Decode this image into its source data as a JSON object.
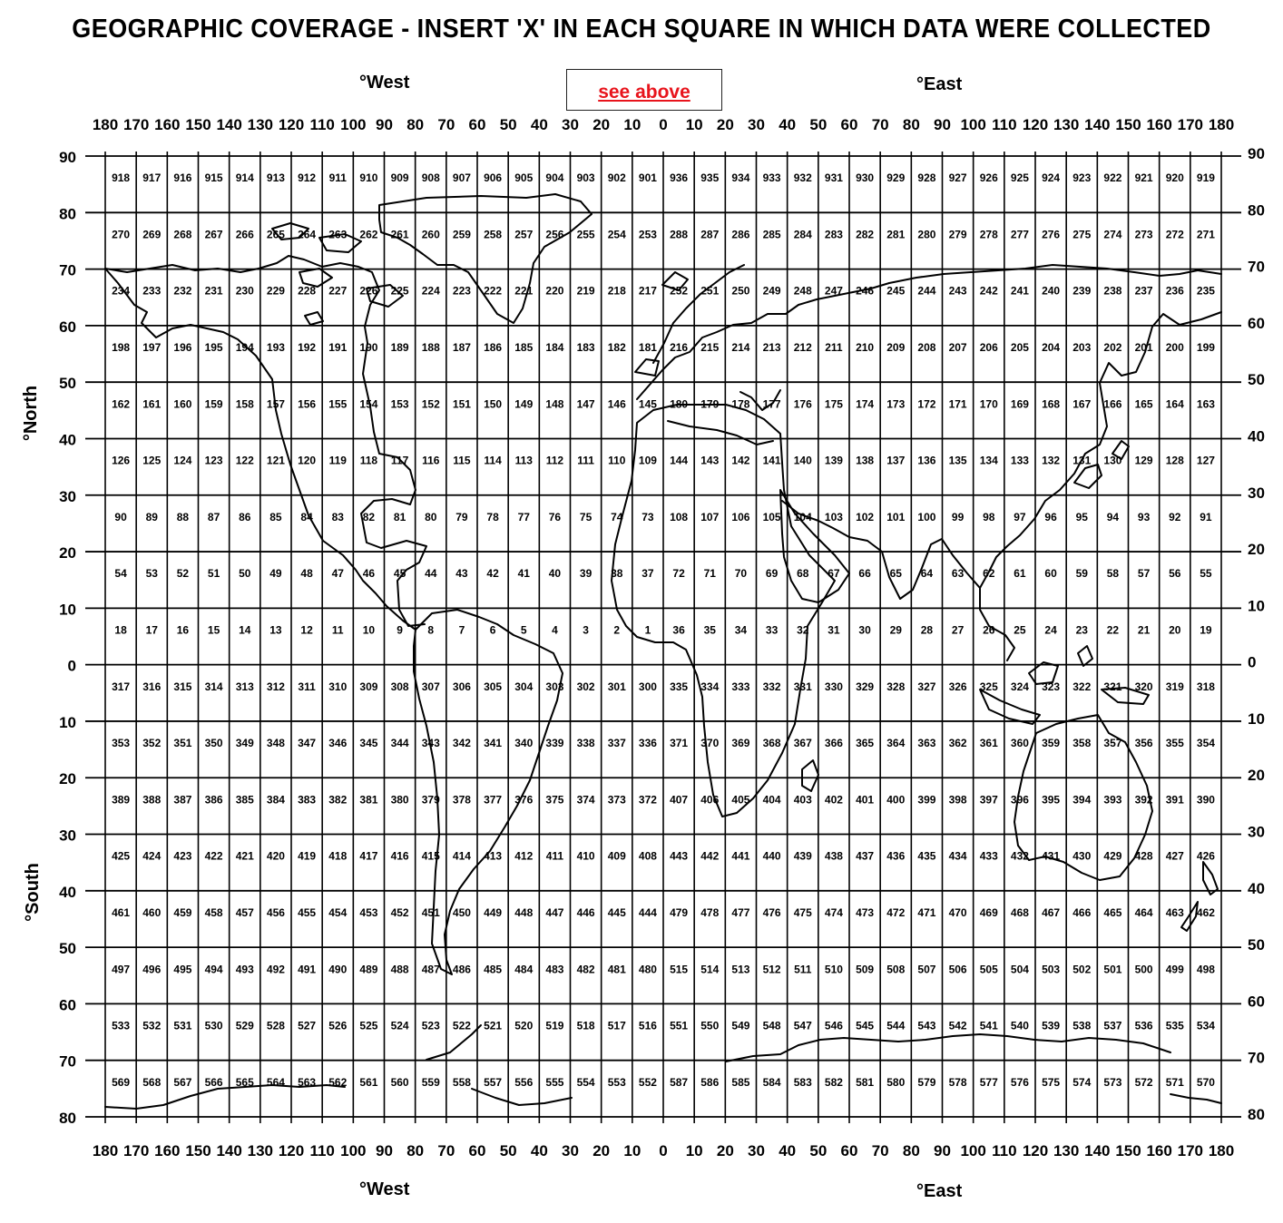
{
  "title": "GEOGRAPHIC COVERAGE - INSERT 'X' IN EACH SQUARE IN WHICH DATA WERE COLLECTED",
  "headers": {
    "west_top": "°West",
    "east_top": "°East",
    "west_bottom": "°West",
    "east_bottom": "°East",
    "north": "°North",
    "south": "°South"
  },
  "link": {
    "label": "see above",
    "color": "#e8141c"
  },
  "axes": {
    "longitude_labels": [
      "180",
      "170",
      "160",
      "150",
      "140",
      "130",
      "120",
      "110",
      "100",
      "90",
      "80",
      "70",
      "60",
      "50",
      "40",
      "30",
      "20",
      "10",
      "0",
      "10",
      "20",
      "30",
      "40",
      "50",
      "60",
      "70",
      "80",
      "90",
      "100",
      "110",
      "120",
      "130",
      "140",
      "150",
      "160",
      "170",
      "180"
    ],
    "latitude_labels": [
      "90",
      "80",
      "70",
      "60",
      "50",
      "40",
      "30",
      "20",
      "10",
      "0",
      "10",
      "20",
      "30",
      "40",
      "50",
      "60",
      "70",
      "80"
    ]
  },
  "grid_rows": [
    [
      918,
      917,
      916,
      915,
      914,
      913,
      912,
      911,
      910,
      909,
      908,
      907,
      906,
      905,
      904,
      903,
      902,
      901,
      936,
      935,
      934,
      933,
      932,
      931,
      930,
      929,
      928,
      927,
      926,
      925,
      924,
      923,
      922,
      921,
      920,
      919
    ],
    [
      270,
      269,
      268,
      267,
      266,
      265,
      264,
      263,
      262,
      261,
      260,
      259,
      258,
      257,
      256,
      255,
      254,
      253,
      288,
      287,
      286,
      285,
      284,
      283,
      282,
      281,
      280,
      279,
      278,
      277,
      276,
      275,
      274,
      273,
      272,
      271
    ],
    [
      234,
      233,
      232,
      231,
      230,
      229,
      228,
      227,
      226,
      225,
      224,
      223,
      222,
      221,
      220,
      219,
      218,
      217,
      252,
      251,
      250,
      249,
      248,
      247,
      246,
      245,
      244,
      243,
      242,
      241,
      240,
      239,
      238,
      237,
      236,
      235
    ],
    [
      198,
      197,
      196,
      195,
      194,
      193,
      192,
      191,
      190,
      189,
      188,
      187,
      186,
      185,
      184,
      183,
      182,
      181,
      216,
      215,
      214,
      213,
      212,
      211,
      210,
      209,
      208,
      207,
      206,
      205,
      204,
      203,
      202,
      201,
      200,
      199
    ],
    [
      162,
      161,
      160,
      159,
      158,
      157,
      156,
      155,
      154,
      153,
      152,
      151,
      150,
      149,
      148,
      147,
      146,
      145,
      180,
      179,
      178,
      177,
      176,
      175,
      174,
      173,
      172,
      171,
      170,
      169,
      168,
      167,
      166,
      165,
      164,
      163
    ],
    [
      126,
      125,
      124,
      123,
      122,
      121,
      120,
      119,
      118,
      117,
      116,
      115,
      114,
      113,
      112,
      111,
      110,
      109,
      144,
      143,
      142,
      141,
      140,
      139,
      138,
      137,
      136,
      135,
      134,
      133,
      132,
      131,
      130,
      129,
      128,
      127
    ],
    [
      90,
      89,
      88,
      87,
      86,
      85,
      84,
      83,
      82,
      81,
      80,
      79,
      78,
      77,
      76,
      75,
      74,
      73,
      108,
      107,
      106,
      105,
      104,
      103,
      102,
      101,
      100,
      99,
      98,
      97,
      96,
      95,
      94,
      93,
      92,
      91
    ],
    [
      54,
      53,
      52,
      51,
      50,
      49,
      48,
      47,
      46,
      45,
      44,
      43,
      42,
      41,
      40,
      39,
      38,
      37,
      72,
      71,
      70,
      69,
      68,
      67,
      66,
      65,
      64,
      63,
      62,
      61,
      60,
      59,
      58,
      57,
      56,
      55
    ],
    [
      18,
      17,
      16,
      15,
      14,
      13,
      12,
      11,
      10,
      9,
      8,
      7,
      6,
      5,
      4,
      3,
      2,
      1,
      36,
      35,
      34,
      33,
      32,
      31,
      30,
      29,
      28,
      27,
      26,
      25,
      24,
      23,
      22,
      21,
      20,
      19
    ],
    [
      317,
      316,
      315,
      314,
      313,
      312,
      311,
      310,
      309,
      308,
      307,
      306,
      305,
      304,
      303,
      302,
      301,
      300,
      335,
      334,
      333,
      332,
      331,
      330,
      329,
      328,
      327,
      326,
      325,
      324,
      323,
      322,
      321,
      320,
      319,
      318
    ],
    [
      353,
      352,
      351,
      350,
      349,
      348,
      347,
      346,
      345,
      344,
      343,
      342,
      341,
      340,
      339,
      338,
      337,
      336,
      371,
      370,
      369,
      368,
      367,
      366,
      365,
      364,
      363,
      362,
      361,
      360,
      359,
      358,
      357,
      356,
      355,
      354
    ],
    [
      389,
      388,
      387,
      386,
      385,
      384,
      383,
      382,
      381,
      380,
      379,
      378,
      377,
      376,
      375,
      374,
      373,
      372,
      407,
      406,
      405,
      404,
      403,
      402,
      401,
      400,
      399,
      398,
      397,
      396,
      395,
      394,
      393,
      392,
      391,
      390
    ],
    [
      425,
      424,
      423,
      422,
      421,
      420,
      419,
      418,
      417,
      416,
      415,
      414,
      413,
      412,
      411,
      410,
      409,
      408,
      443,
      442,
      441,
      440,
      439,
      438,
      437,
      436,
      435,
      434,
      433,
      432,
      431,
      430,
      429,
      428,
      427,
      426
    ],
    [
      461,
      460,
      459,
      458,
      457,
      456,
      455,
      454,
      453,
      452,
      451,
      450,
      449,
      448,
      447,
      446,
      445,
      444,
      479,
      478,
      477,
      476,
      475,
      474,
      473,
      472,
      471,
      470,
      469,
      468,
      467,
      466,
      465,
      464,
      463,
      462
    ],
    [
      497,
      496,
      495,
      494,
      493,
      492,
      491,
      490,
      489,
      488,
      487,
      486,
      485,
      484,
      483,
      482,
      481,
      480,
      515,
      514,
      513,
      512,
      511,
      510,
      509,
      508,
      507,
      506,
      505,
      504,
      503,
      502,
      501,
      500,
      499,
      498
    ],
    [
      533,
      532,
      531,
      530,
      529,
      528,
      527,
      526,
      525,
      524,
      523,
      522,
      521,
      520,
      519,
      518,
      517,
      516,
      551,
      550,
      549,
      548,
      547,
      546,
      545,
      544,
      543,
      542,
      541,
      540,
      539,
      538,
      537,
      536,
      535,
      534
    ],
    [
      569,
      568,
      567,
      566,
      565,
      564,
      563,
      562,
      561,
      560,
      559,
      558,
      557,
      556,
      555,
      554,
      553,
      552,
      587,
      586,
      585,
      584,
      583,
      582,
      581,
      580,
      579,
      578,
      577,
      576,
      575,
      574,
      573,
      572,
      571,
      570
    ]
  ]
}
